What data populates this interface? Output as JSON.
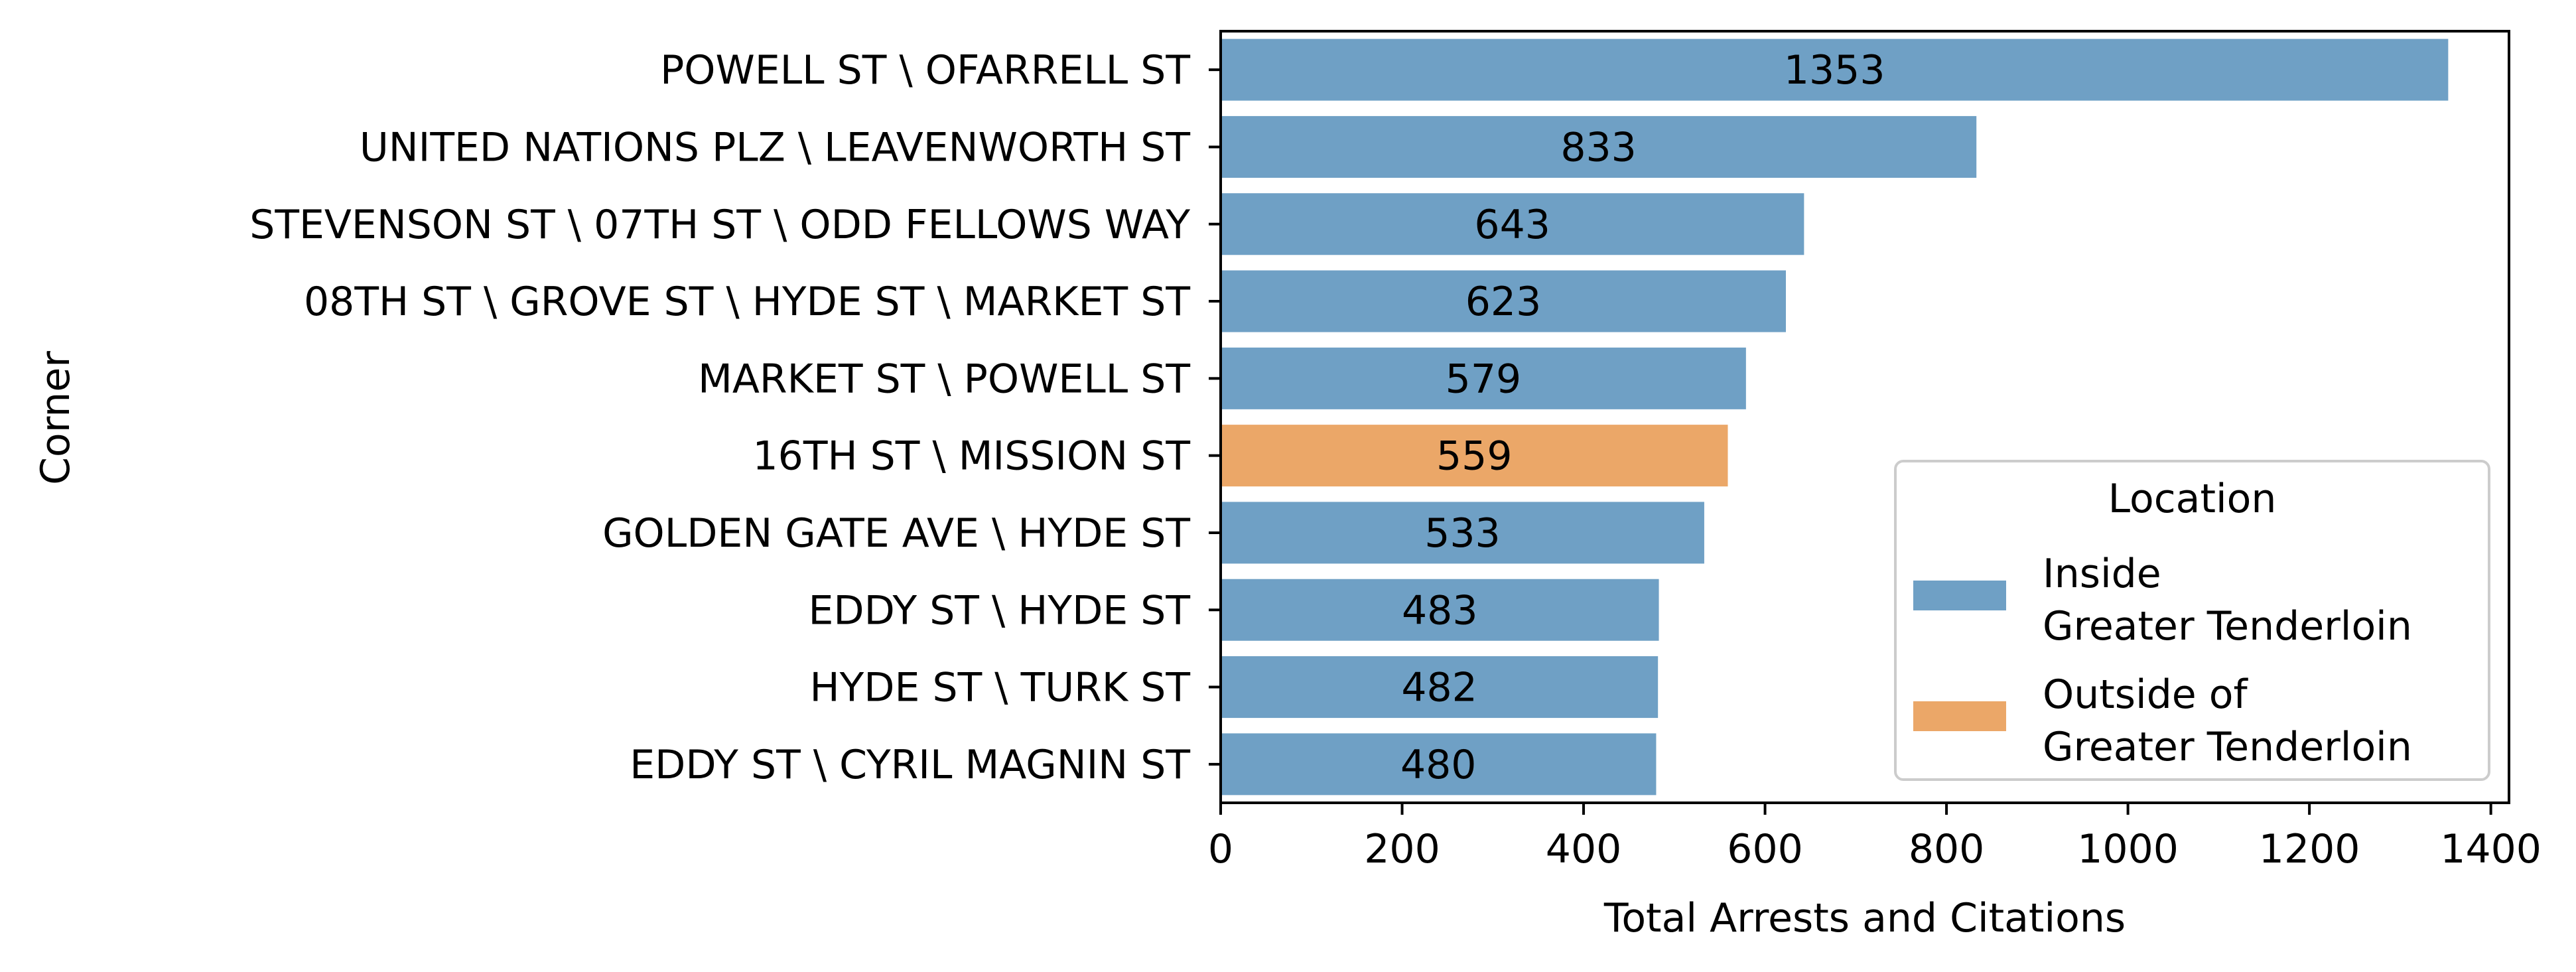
{
  "chart_data": {
    "type": "bar",
    "orientation": "horizontal",
    "categories": [
      "POWELL ST \\ OFARRELL ST",
      "UNITED NATIONS PLZ \\ LEAVENWORTH ST",
      "STEVENSON ST \\ 07TH ST \\ ODD FELLOWS WAY",
      "08TH ST \\ GROVE ST \\ HYDE ST \\ MARKET ST",
      "MARKET ST \\ POWELL ST",
      "16TH ST \\ MISSION ST",
      "GOLDEN GATE AVE \\ HYDE ST",
      "EDDY ST \\ HYDE ST",
      "HYDE ST \\ TURK ST",
      "EDDY ST \\ CYRIL MAGNIN ST"
    ],
    "values": [
      1353,
      833,
      643,
      623,
      579,
      559,
      533,
      483,
      482,
      480
    ],
    "data_labels": [
      "1353",
      "833",
      "643",
      "623",
      "579",
      "559",
      "533",
      "483",
      "482",
      "480"
    ],
    "groups": [
      "inside",
      "inside",
      "inside",
      "inside",
      "inside",
      "outside",
      "inside",
      "inside",
      "inside",
      "inside"
    ],
    "xlabel": "Total Arrests and Citations",
    "ylabel": "Corner",
    "xlim": [
      0,
      1420
    ],
    "xticks": [
      0,
      200,
      400,
      600,
      800,
      1000,
      1200,
      1400
    ],
    "xtick_labels": [
      "0",
      "200",
      "400",
      "600",
      "800",
      "1000",
      "1200",
      "1400"
    ],
    "grid": false,
    "legend": {
      "title": "Location",
      "placement": "lower-right",
      "entries": [
        {
          "key": "inside",
          "lines": [
            "Inside",
            "Greater Tenderloin"
          ],
          "color": "#6fa0c5"
        },
        {
          "key": "outside",
          "lines": [
            "Outside of",
            "Greater Tenderloin"
          ],
          "color": "#eba768"
        }
      ]
    },
    "colors": {
      "inside": "#6fa0c5",
      "outside": "#eba768"
    }
  }
}
